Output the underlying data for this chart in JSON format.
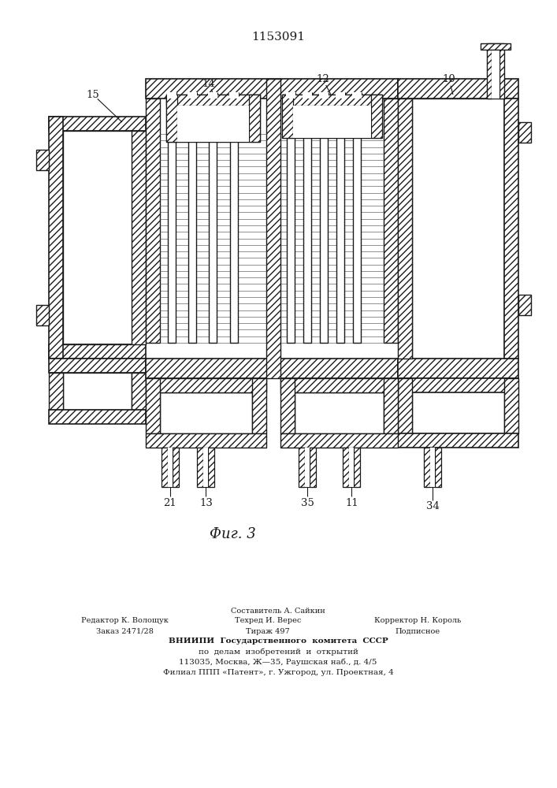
{
  "patent_number": "1153091",
  "fig_label": "Фиг. 3",
  "line_color": "#1a1a1a",
  "hatch": "////",
  "footer": {
    "sestavitel": "Составитель А. Сайкин",
    "redaktor": "Редактор К. Волощук",
    "tehred": "Техред И. Верес",
    "korrektor": "Корректор Н. Король",
    "zakaz": "Заказ 2471/28",
    "tirazh": "Тираж 497",
    "podpisnoe": "Подписное",
    "vniipи1": "ВНИИПИ  Государственного  комитета  СССР",
    "vniipи2": "по  делам  изобретений  и  открытий",
    "addr1": "113035, Москва, Ж—35, Раушская наб., д. 4/5",
    "addr2": "Филиал ППП «Патент», г. Ужгород, ул. Проектная, 4"
  }
}
